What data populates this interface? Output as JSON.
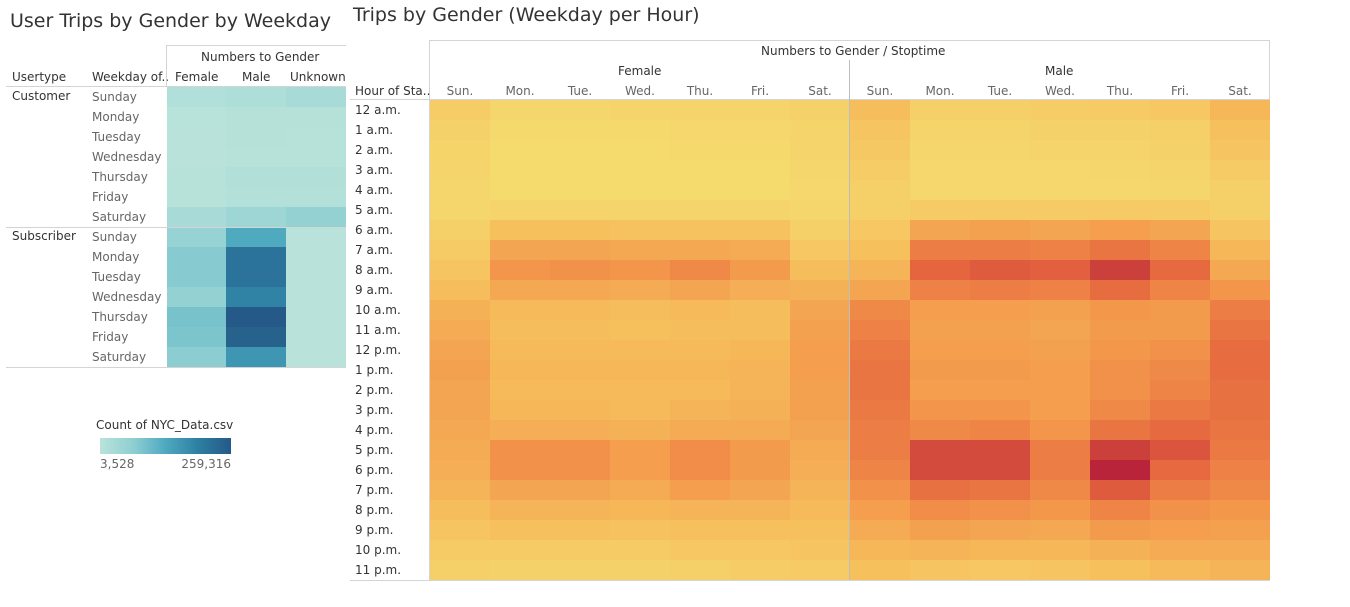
{
  "left_chart": {
    "title": "User Trips by Gender by Weekday",
    "header_group": "Numbers to Gender",
    "col_headers": [
      "Usertype",
      "Weekday of..",
      "Female",
      "Male",
      "Unknown"
    ],
    "usertypes": [
      "Customer",
      "Subscriber"
    ],
    "weekdays": [
      "Sunday",
      "Monday",
      "Tuesday",
      "Wednesday",
      "Thursday",
      "Friday",
      "Saturday"
    ],
    "legend": {
      "title": "Count of NYC_Data.csv",
      "min_label": "3,528",
      "max_label": "259,316"
    }
  },
  "right_chart": {
    "title": "Trips by Gender (Weekday per Hour)",
    "header_group": "Numbers to Gender / Stoptime",
    "genders": [
      "Female",
      "Male"
    ],
    "row_header": "Hour of Sta..",
    "days": [
      "Sun.",
      "Mon.",
      "Tue.",
      "Wed.",
      "Thu.",
      "Fri.",
      "Sat."
    ],
    "hours": [
      "12 a.m.",
      "1 a.m.",
      "2 a.m.",
      "3 a.m.",
      "4 a.m.",
      "5 a.m.",
      "6 a.m.",
      "7 a.m.",
      "8 a.m.",
      "9 a.m.",
      "10 a.m.",
      "11 a.m.",
      "12 p.m.",
      "1 p.m.",
      "2 p.m.",
      "3 p.m.",
      "4 p.m.",
      "5 p.m.",
      "6 p.m.",
      "7 p.m.",
      "8 p.m.",
      "9 p.m.",
      "10 p.m.",
      "11 p.m."
    ]
  },
  "chart_data": [
    {
      "type": "heatmap",
      "title": "User Trips by Gender by Weekday",
      "color_scale": {
        "min": 3528,
        "max": 259316,
        "colors": [
          "#b9e3da",
          "#8fcfd2",
          "#4ea9c0",
          "#2d7fa2",
          "#255987"
        ]
      },
      "columns": [
        "Female",
        "Male",
        "Unknown"
      ],
      "rows": [
        {
          "usertype": "Customer",
          "weekday": "Sunday",
          "values": [
            15000,
            20000,
            30000
          ]
        },
        {
          "usertype": "Customer",
          "weekday": "Monday",
          "values": [
            5000,
            10000,
            9000
          ]
        },
        {
          "usertype": "Customer",
          "weekday": "Tuesday",
          "values": [
            4000,
            9000,
            8000
          ]
        },
        {
          "usertype": "Customer",
          "weekday": "Wednesday",
          "values": [
            3528,
            8000,
            7000
          ]
        },
        {
          "usertype": "Customer",
          "weekday": "Thursday",
          "values": [
            6000,
            14000,
            14000
          ]
        },
        {
          "usertype": "Customer",
          "weekday": "Friday",
          "values": [
            7000,
            13000,
            13000
          ]
        },
        {
          "usertype": "Customer",
          "weekday": "Saturday",
          "values": [
            30000,
            45000,
            60000
          ]
        },
        {
          "usertype": "Subscriber",
          "weekday": "Sunday",
          "values": [
            55000,
            130000,
            4000
          ]
        },
        {
          "usertype": "Subscriber",
          "weekday": "Monday",
          "values": [
            75000,
            215000,
            4000
          ]
        },
        {
          "usertype": "Subscriber",
          "weekday": "Tuesday",
          "values": [
            75000,
            215000,
            4000
          ]
        },
        {
          "usertype": "Subscriber",
          "weekday": "Wednesday",
          "values": [
            60000,
            190000,
            4000
          ]
        },
        {
          "usertype": "Subscriber",
          "weekday": "Thursday",
          "values": [
            90000,
            259316,
            4000
          ]
        },
        {
          "usertype": "Subscriber",
          "weekday": "Friday",
          "values": [
            85000,
            245000,
            4000
          ]
        },
        {
          "usertype": "Subscriber",
          "weekday": "Saturday",
          "values": [
            70000,
            160000,
            4000
          ]
        }
      ]
    },
    {
      "type": "heatmap",
      "title": "Trips by Gender (Weekday per Hour)",
      "xlabel": "Numbers to Gender / Stoptime",
      "ylabel": "Hour of Sta..",
      "color_scale": {
        "min": 0,
        "max": 100,
        "colors": [
          "#f5db6f",
          "#f6bc5b",
          "#f3954a",
          "#e4633f",
          "#b51f3a"
        ]
      },
      "hours": [
        "12 a.m.",
        "1 a.m.",
        "2 a.m.",
        "3 a.m.",
        "4 a.m.",
        "5 a.m.",
        "6 a.m.",
        "7 a.m.",
        "8 a.m.",
        "9 a.m.",
        "10 a.m.",
        "11 a.m.",
        "12 p.m.",
        "1 p.m.",
        "2 p.m.",
        "3 p.m.",
        "4 p.m.",
        "5 p.m.",
        "6 p.m.",
        "7 p.m.",
        "8 p.m.",
        "9 p.m.",
        "10 p.m.",
        "11 p.m."
      ],
      "series": [
        {
          "name": "Female",
          "days": [
            "Sun.",
            "Mon.",
            "Tue.",
            "Wed.",
            "Thu.",
            "Fri.",
            "Sat."
          ],
          "values": [
            [
              12,
              4,
              4,
              5,
              5,
              5,
              8
            ],
            [
              8,
              2,
              2,
              2,
              3,
              3,
              6
            ],
            [
              6,
              1,
              1,
              1,
              2,
              2,
              5
            ],
            [
              5,
              1,
              1,
              1,
              1,
              1,
              4
            ],
            [
              4,
              1,
              1,
              1,
              1,
              1,
              3
            ],
            [
              4,
              5,
              5,
              5,
              5,
              5,
              4
            ],
            [
              10,
              22,
              22,
              20,
              20,
              20,
              10
            ],
            [
              14,
              40,
              40,
              38,
              38,
              36,
              16
            ],
            [
              18,
              50,
              52,
              50,
              56,
              46,
              24
            ],
            [
              24,
              38,
              38,
              36,
              40,
              34,
              32
            ],
            [
              32,
              26,
              26,
              24,
              26,
              24,
              40
            ],
            [
              36,
              24,
              24,
              22,
              24,
              24,
              42
            ],
            [
              40,
              26,
              26,
              26,
              26,
              28,
              44
            ],
            [
              42,
              28,
              28,
              28,
              28,
              30,
              44
            ],
            [
              40,
              26,
              26,
              26,
              26,
              30,
              42
            ],
            [
              40,
              28,
              28,
              26,
              30,
              32,
              42
            ],
            [
              38,
              34,
              34,
              32,
              36,
              36,
              40
            ],
            [
              36,
              52,
              52,
              44,
              54,
              46,
              36
            ],
            [
              34,
              52,
              52,
              44,
              54,
              46,
              34
            ],
            [
              30,
              40,
              40,
              36,
              44,
              40,
              30
            ],
            [
              24,
              30,
              30,
              28,
              30,
              30,
              26
            ],
            [
              18,
              22,
              22,
              20,
              22,
              22,
              22
            ],
            [
              14,
              14,
              14,
              14,
              16,
              16,
              18
            ],
            [
              10,
              8,
              8,
              8,
              10,
              12,
              14
            ]
          ]
        },
        {
          "name": "Male",
          "days": [
            "Sun.",
            "Mon.",
            "Tue.",
            "Wed.",
            "Thu.",
            "Fri.",
            "Sat."
          ],
          "values": [
            [
              24,
              10,
              10,
              12,
              14,
              16,
              28
            ],
            [
              18,
              6,
              6,
              7,
              8,
              10,
              22
            ],
            [
              15,
              4,
              4,
              5,
              5,
              7,
              18
            ],
            [
              12,
              3,
              3,
              3,
              4,
              5,
              14
            ],
            [
              9,
              3,
              3,
              3,
              3,
              4,
              10
            ],
            [
              10,
              14,
              14,
              14,
              14,
              13,
              10
            ],
            [
              16,
              40,
              42,
              40,
              44,
              40,
              18
            ],
            [
              22,
              62,
              62,
              60,
              66,
              58,
              28
            ],
            [
              30,
              74,
              78,
              76,
              88,
              72,
              38
            ],
            [
              40,
              60,
              62,
              60,
              70,
              58,
              50
            ],
            [
              56,
              44,
              44,
              42,
              48,
              46,
              62
            ],
            [
              60,
              42,
              42,
              40,
              46,
              46,
              66
            ],
            [
              64,
              44,
              44,
              42,
              48,
              52,
              70
            ],
            [
              66,
              46,
              46,
              44,
              52,
              56,
              70
            ],
            [
              66,
              44,
              44,
              44,
              52,
              58,
              68
            ],
            [
              64,
              50,
              50,
              44,
              56,
              64,
              68
            ],
            [
              62,
              56,
              58,
              50,
              66,
              72,
              66
            ],
            [
              62,
              84,
              84,
              62,
              88,
              80,
              64
            ],
            [
              58,
              84,
              84,
              62,
              98,
              72,
              60
            ],
            [
              52,
              68,
              66,
              56,
              78,
              62,
              56
            ],
            [
              44,
              54,
              52,
              48,
              58,
              52,
              48
            ],
            [
              36,
              42,
              40,
              38,
              46,
              44,
              42
            ],
            [
              28,
              30,
              28,
              28,
              32,
              36,
              36
            ],
            [
              22,
              18,
              16,
              18,
              22,
              26,
              30
            ]
          ]
        }
      ]
    }
  ]
}
